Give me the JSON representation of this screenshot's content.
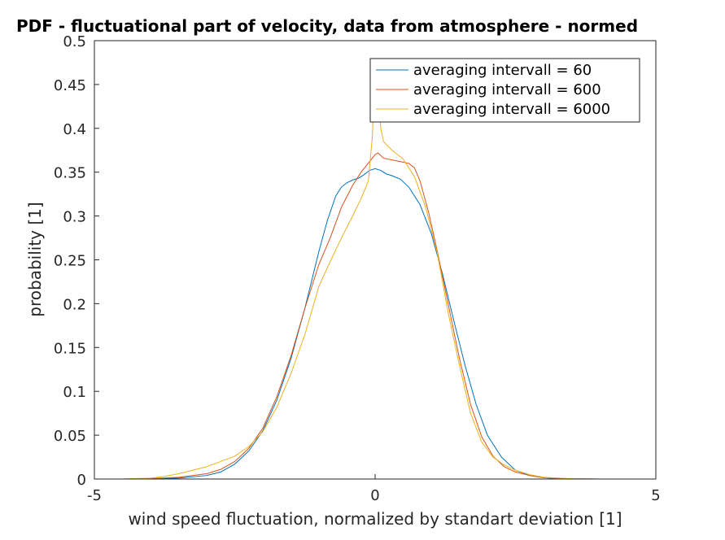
{
  "chart_data": {
    "type": "line",
    "title": "PDF - fluctuational part of velocity, data from atmosphere - normed",
    "xlabel": "wind speed fluctuation, normalized by standart deviation [1]",
    "ylabel": "probability [1]",
    "xlim": [
      -5,
      5
    ],
    "ylim": [
      0,
      0.5
    ],
    "xticks": [
      -5,
      0,
      5
    ],
    "yticks": [
      0,
      0.05,
      0.1,
      0.15,
      0.2,
      0.25,
      0.3,
      0.35,
      0.4,
      0.45,
      0.5
    ],
    "grid": false,
    "legend_position": "top-right",
    "series": [
      {
        "name": "averaging intervall = 60",
        "color": "#0072bd",
        "x": [
          -5,
          -4.5,
          -4,
          -3.5,
          -3,
          -2.75,
          -2.5,
          -2.25,
          -2,
          -1.75,
          -1.5,
          -1.25,
          -1,
          -0.85,
          -0.7,
          -0.6,
          -0.5,
          -0.4,
          -0.3,
          -0.2,
          -0.1,
          0,
          0.1,
          0.2,
          0.3,
          0.45,
          0.6,
          0.8,
          1,
          1.2,
          1.4,
          1.6,
          1.8,
          2,
          2.25,
          2.5,
          2.75,
          3,
          3.25,
          3.5,
          4,
          4.3
        ],
        "y": [
          0,
          0,
          0.0005,
          0.001,
          0.004,
          0.008,
          0.017,
          0.032,
          0.055,
          0.09,
          0.137,
          0.195,
          0.26,
          0.295,
          0.323,
          0.333,
          0.338,
          0.341,
          0.343,
          0.347,
          0.352,
          0.354,
          0.352,
          0.348,
          0.346,
          0.342,
          0.333,
          0.313,
          0.28,
          0.234,
          0.181,
          0.13,
          0.085,
          0.05,
          0.025,
          0.01,
          0.004,
          0.0015,
          0.0005,
          0.0002,
          0,
          0
        ]
      },
      {
        "name": "averaging intervall = 600",
        "color": "#d95319",
        "x": [
          -5,
          -4.5,
          -4,
          -3.5,
          -3,
          -2.75,
          -2.5,
          -2.25,
          -2,
          -1.75,
          -1.5,
          -1.25,
          -1,
          -0.8,
          -0.6,
          -0.4,
          -0.25,
          -0.1,
          0,
          0.05,
          0.15,
          0.3,
          0.45,
          0.6,
          0.7,
          0.8,
          0.95,
          1.1,
          1.3,
          1.5,
          1.7,
          1.9,
          2.1,
          2.3,
          2.5,
          2.75,
          3,
          3.5,
          4
        ],
        "y": [
          0,
          0,
          0.0005,
          0.002,
          0.006,
          0.011,
          0.02,
          0.035,
          0.058,
          0.094,
          0.14,
          0.195,
          0.245,
          0.275,
          0.31,
          0.335,
          0.35,
          0.362,
          0.37,
          0.372,
          0.366,
          0.364,
          0.362,
          0.36,
          0.355,
          0.34,
          0.305,
          0.262,
          0.2,
          0.138,
          0.085,
          0.048,
          0.026,
          0.014,
          0.008,
          0.004,
          0.0015,
          0.0002,
          0
        ]
      },
      {
        "name": "averaging intervall = 6000",
        "color": "#edb120",
        "x": [
          -5,
          -4.5,
          -4,
          -3.75,
          -3.5,
          -3.25,
          -3,
          -2.75,
          -2.5,
          -2.25,
          -2,
          -1.75,
          -1.5,
          -1.25,
          -1,
          -0.8,
          -0.6,
          -0.4,
          -0.25,
          -0.12,
          -0.05,
          0,
          0.03,
          0.06,
          0.1,
          0.15,
          0.3,
          0.5,
          0.7,
          0.9,
          1.1,
          1.3,
          1.5,
          1.7,
          1.9,
          2.1,
          2.3,
          2.5,
          2.75,
          3,
          3.5,
          4
        ],
        "y": [
          0,
          0,
          0.001,
          0.003,
          0.006,
          0.01,
          0.014,
          0.02,
          0.026,
          0.037,
          0.054,
          0.082,
          0.12,
          0.165,
          0.22,
          0.248,
          0.275,
          0.3,
          0.32,
          0.34,
          0.39,
          0.465,
          0.478,
          0.45,
          0.4,
          0.385,
          0.375,
          0.365,
          0.345,
          0.31,
          0.26,
          0.19,
          0.13,
          0.075,
          0.042,
          0.025,
          0.016,
          0.01,
          0.005,
          0.002,
          0.0004,
          0
        ]
      }
    ]
  }
}
